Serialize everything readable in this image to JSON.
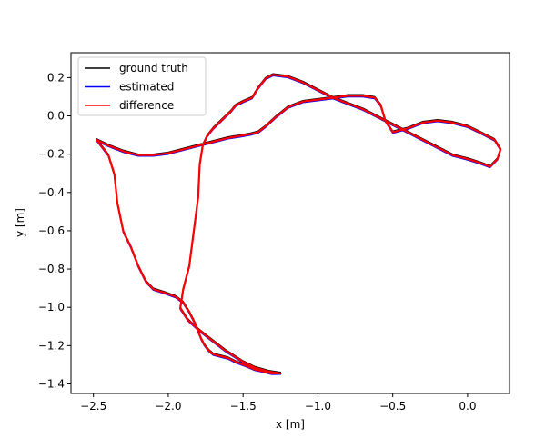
{
  "chart_data": {
    "type": "line",
    "title": "",
    "xlabel": "x [m]",
    "ylabel": "y [m]",
    "xlim": [
      -2.65,
      0.28
    ],
    "ylim": [
      -1.45,
      0.33
    ],
    "xticks": [
      -2.5,
      -2.0,
      -1.5,
      -1.0,
      -0.5,
      0.0
    ],
    "xtick_labels": [
      "−2.5",
      "−2.0",
      "−1.5",
      "−1.0",
      "−0.5",
      "0.0"
    ],
    "yticks": [
      0.2,
      0.0,
      -0.2,
      -0.4,
      -0.6,
      -0.8,
      -1.0,
      -1.2,
      -1.4
    ],
    "ytick_labels": [
      "0.2",
      "0.0",
      "−0.2",
      "−0.4",
      "−0.6",
      "−0.8",
      "−1.0",
      "−1.2",
      "−1.4"
    ],
    "grid": false,
    "legend_position": "top-left",
    "series": [
      {
        "name": "ground truth",
        "color": "#000000",
        "x": [
          -1.25,
          -1.33,
          -1.42,
          -1.5,
          -1.62,
          -1.72,
          -1.8,
          -1.87,
          -1.92,
          -1.9,
          -1.86,
          -1.83,
          -1.8,
          -1.79,
          -1.77,
          -1.74,
          -1.7,
          -1.66,
          -1.62,
          -1.58,
          -1.55,
          -1.5,
          -1.44,
          -1.4,
          -1.37,
          -1.35,
          -1.3,
          -1.2,
          -1.1,
          -1.0,
          -0.9,
          -0.8,
          -0.7,
          -0.6,
          -0.5,
          -0.4,
          -0.3,
          -0.2,
          -0.1,
          0.0,
          0.08,
          0.15,
          0.2,
          0.22,
          0.18,
          0.08,
          0.0,
          -0.1,
          -0.2,
          -0.3,
          -0.4,
          -0.5,
          -0.55,
          -0.58,
          -0.62,
          -0.7,
          -0.8,
          -0.9,
          -1.0,
          -1.1,
          -1.2,
          -1.28,
          -1.35,
          -1.4,
          -1.45,
          -1.52,
          -1.6,
          -1.7,
          -1.8,
          -1.9,
          -2.0,
          -2.1,
          -2.2,
          -2.3,
          -2.4,
          -2.48,
          -2.45,
          -2.4,
          -2.36,
          -2.34,
          -2.3,
          -2.25,
          -2.2,
          -2.15,
          -2.1,
          -2.02,
          -1.95,
          -1.9,
          -1.86,
          -1.82,
          -1.8,
          -1.78,
          -1.76,
          -1.73,
          -1.7,
          -1.65,
          -1.6,
          -1.55,
          -1.48,
          -1.42,
          -1.36,
          -1.31,
          -1.27
        ],
        "y": [
          -1.34,
          -1.33,
          -1.31,
          -1.28,
          -1.22,
          -1.16,
          -1.11,
          -1.06,
          -1.0,
          -0.9,
          -0.78,
          -0.6,
          -0.42,
          -0.25,
          -0.15,
          -0.1,
          -0.06,
          -0.03,
          0.0,
          0.03,
          0.06,
          0.08,
          0.1,
          0.15,
          0.18,
          0.2,
          0.22,
          0.21,
          0.18,
          0.14,
          0.1,
          0.07,
          0.04,
          0.0,
          -0.04,
          -0.08,
          -0.12,
          -0.16,
          -0.2,
          -0.22,
          -0.24,
          -0.26,
          -0.22,
          -0.17,
          -0.12,
          -0.08,
          -0.05,
          -0.03,
          -0.02,
          -0.03,
          -0.06,
          -0.08,
          -0.02,
          0.06,
          0.1,
          0.11,
          0.11,
          0.1,
          0.09,
          0.08,
          0.05,
          0.0,
          -0.05,
          -0.08,
          -0.09,
          -0.1,
          -0.11,
          -0.13,
          -0.15,
          -0.17,
          -0.19,
          -0.2,
          -0.2,
          -0.18,
          -0.15,
          -0.12,
          -0.15,
          -0.2,
          -0.3,
          -0.45,
          -0.6,
          -0.68,
          -0.78,
          -0.86,
          -0.9,
          -0.92,
          -0.94,
          -0.97,
          -1.02,
          -1.08,
          -1.12,
          -1.16,
          -1.19,
          -1.22,
          -1.24,
          -1.25,
          -1.26,
          -1.28,
          -1.3,
          -1.32,
          -1.33,
          -1.34,
          -1.34
        ]
      },
      {
        "name": "estimated",
        "color": "#0000ff",
        "x": [
          -1.25,
          -1.33,
          -1.42,
          -1.5,
          -1.62,
          -1.72,
          -1.8,
          -1.87,
          -1.92,
          -1.9,
          -1.86,
          -1.83,
          -1.8,
          -1.79,
          -1.77,
          -1.74,
          -1.7,
          -1.66,
          -1.62,
          -1.58,
          -1.55,
          -1.5,
          -1.44,
          -1.4,
          -1.37,
          -1.35,
          -1.3,
          -1.2,
          -1.1,
          -1.0,
          -0.9,
          -0.8,
          -0.7,
          -0.6,
          -0.5,
          -0.4,
          -0.3,
          -0.2,
          -0.1,
          0.0,
          0.08,
          0.15,
          0.2,
          0.22,
          0.18,
          0.08,
          0.0,
          -0.1,
          -0.2,
          -0.3,
          -0.4,
          -0.5,
          -0.55,
          -0.58,
          -0.62,
          -0.7,
          -0.8,
          -0.9,
          -1.0,
          -1.1,
          -1.2,
          -1.28,
          -1.35,
          -1.4,
          -1.45,
          -1.52,
          -1.6,
          -1.7,
          -1.8,
          -1.9,
          -2.0,
          -2.1,
          -2.2,
          -2.3,
          -2.4,
          -2.48,
          -2.45,
          -2.4,
          -2.36,
          -2.34,
          -2.3,
          -2.25,
          -2.2,
          -2.15,
          -2.1,
          -2.02,
          -1.95,
          -1.9,
          -1.86,
          -1.82,
          -1.8,
          -1.78,
          -1.76,
          -1.73,
          -1.7,
          -1.65,
          -1.6,
          -1.55,
          -1.48,
          -1.42,
          -1.36,
          -1.31,
          -1.27
        ],
        "y": [
          -1.35,
          -1.34,
          -1.32,
          -1.29,
          -1.23,
          -1.17,
          -1.12,
          -1.07,
          -1.01,
          -0.91,
          -0.79,
          -0.61,
          -0.43,
          -0.26,
          -0.16,
          -0.11,
          -0.07,
          -0.04,
          -0.01,
          0.02,
          0.05,
          0.07,
          0.09,
          0.14,
          0.17,
          0.19,
          0.21,
          0.2,
          0.17,
          0.13,
          0.09,
          0.06,
          0.03,
          -0.01,
          -0.05,
          -0.09,
          -0.13,
          -0.17,
          -0.21,
          -0.23,
          -0.25,
          -0.27,
          -0.23,
          -0.18,
          -0.13,
          -0.09,
          -0.06,
          -0.04,
          -0.03,
          -0.04,
          -0.07,
          -0.09,
          -0.03,
          0.05,
          0.09,
          0.1,
          0.1,
          0.09,
          0.08,
          0.07,
          0.04,
          -0.01,
          -0.06,
          -0.09,
          -0.1,
          -0.11,
          -0.12,
          -0.14,
          -0.16,
          -0.18,
          -0.2,
          -0.21,
          -0.21,
          -0.19,
          -0.16,
          -0.13,
          -0.16,
          -0.21,
          -0.31,
          -0.46,
          -0.61,
          -0.69,
          -0.79,
          -0.87,
          -0.91,
          -0.93,
          -0.95,
          -0.98,
          -1.03,
          -1.09,
          -1.13,
          -1.17,
          -1.2,
          -1.23,
          -1.25,
          -1.26,
          -1.27,
          -1.29,
          -1.31,
          -1.33,
          -1.34,
          -1.35,
          -1.35
        ]
      },
      {
        "name": "difference",
        "color": "#ff0000",
        "x": [
          -1.25,
          -1.33,
          -1.42,
          -1.5,
          -1.62,
          -1.72,
          -1.8,
          -1.87,
          -1.92,
          -1.9,
          -1.86,
          -1.83,
          -1.8,
          -1.79,
          -1.77,
          -1.74,
          -1.7,
          -1.66,
          -1.62,
          -1.58,
          -1.55,
          -1.5,
          -1.44,
          -1.4,
          -1.37,
          -1.35,
          -1.3,
          -1.2,
          -1.1,
          -1.0,
          -0.9,
          -0.8,
          -0.7,
          -0.6,
          -0.5,
          -0.4,
          -0.3,
          -0.2,
          -0.1,
          0.0,
          0.08,
          0.15,
          0.2,
          0.22,
          0.18,
          0.08,
          0.0,
          -0.1,
          -0.2,
          -0.3,
          -0.4,
          -0.5,
          -0.55,
          -0.58,
          -0.62,
          -0.7,
          -0.8,
          -0.9,
          -1.0,
          -1.1,
          -1.2,
          -1.28,
          -1.35,
          -1.4,
          -1.45,
          -1.52,
          -1.6,
          -1.7,
          -1.8,
          -1.9,
          -2.0,
          -2.1,
          -2.2,
          -2.3,
          -2.4,
          -2.48,
          -2.45,
          -2.4,
          -2.36,
          -2.34,
          -2.3,
          -2.25,
          -2.2,
          -2.15,
          -2.1,
          -2.02,
          -1.95,
          -1.9,
          -1.86,
          -1.82,
          -1.8,
          -1.78,
          -1.76,
          -1.73,
          -1.7,
          -1.65,
          -1.6,
          -1.55,
          -1.48,
          -1.42,
          -1.36,
          -1.31,
          -1.27
        ],
        "y": [
          -1.345,
          -1.335,
          -1.315,
          -1.285,
          -1.225,
          -1.165,
          -1.115,
          -1.065,
          -1.005,
          -0.905,
          -0.785,
          -0.605,
          -0.425,
          -0.255,
          -0.155,
          -0.105,
          -0.065,
          -0.035,
          -0.005,
          0.025,
          0.055,
          0.075,
          0.095,
          0.145,
          0.175,
          0.195,
          0.215,
          0.205,
          0.175,
          0.135,
          0.095,
          0.065,
          0.035,
          -0.005,
          -0.045,
          -0.085,
          -0.125,
          -0.165,
          -0.205,
          -0.225,
          -0.245,
          -0.265,
          -0.225,
          -0.175,
          -0.125,
          -0.085,
          -0.055,
          -0.035,
          -0.025,
          -0.035,
          -0.065,
          -0.085,
          -0.025,
          0.055,
          0.095,
          0.105,
          0.105,
          0.095,
          0.085,
          0.075,
          0.045,
          -0.005,
          -0.055,
          -0.085,
          -0.095,
          -0.105,
          -0.115,
          -0.135,
          -0.155,
          -0.175,
          -0.195,
          -0.205,
          -0.205,
          -0.185,
          -0.155,
          -0.125,
          -0.155,
          -0.205,
          -0.305,
          -0.455,
          -0.605,
          -0.685,
          -0.785,
          -0.865,
          -0.905,
          -0.925,
          -0.945,
          -0.975,
          -1.025,
          -1.085,
          -1.125,
          -1.165,
          -1.195,
          -1.225,
          -1.245,
          -1.255,
          -1.265,
          -1.285,
          -1.305,
          -1.325,
          -1.335,
          -1.345,
          -1.345
        ]
      }
    ]
  }
}
